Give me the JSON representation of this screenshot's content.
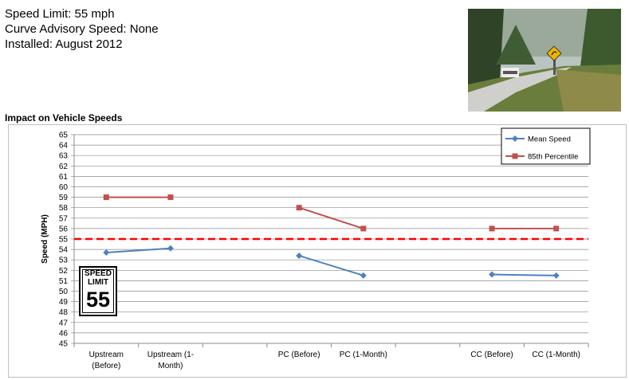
{
  "info": {
    "speed_limit": "Speed Limit: 55 mph",
    "curve_advisory": "Curve Advisory Speed: None",
    "installed": "Installed: August 2012"
  },
  "section_title": "Impact on Vehicle Speeds",
  "sign": {
    "line1": "SPEED",
    "line2": "LIMIT",
    "number": "55"
  },
  "chart_data": {
    "type": "line",
    "title": "",
    "xlabel": "",
    "ylabel": "Speed (MPH)",
    "ylim": [
      45,
      65
    ],
    "yticks": [
      45,
      46,
      47,
      48,
      49,
      50,
      51,
      52,
      53,
      54,
      55,
      56,
      57,
      58,
      59,
      60,
      61,
      62,
      63,
      64,
      65
    ],
    "categories": [
      [
        "Upstream",
        "(Before)"
      ],
      [
        "Upstream (1-",
        "Month)"
      ],
      [
        ""
      ],
      [
        "PC (Before)"
      ],
      [
        "PC (1-Month)"
      ],
      [
        ""
      ],
      [
        "CC (Before)"
      ],
      [
        "CC (1-Month)"
      ]
    ],
    "series": [
      {
        "name": "Mean Speed",
        "color": "#4f81bd",
        "marker": "diamond",
        "values": [
          53.7,
          54.1,
          null,
          53.4,
          51.5,
          null,
          51.6,
          51.5
        ]
      },
      {
        "name": "85th Percentile",
        "color": "#c0504d",
        "marker": "square",
        "values": [
          59,
          59,
          null,
          58,
          56,
          null,
          56,
          56
        ]
      }
    ],
    "reference_line": {
      "value": 55,
      "color": "#ff0000",
      "style": "dashed"
    },
    "grid": true,
    "legend_position": "top-right"
  }
}
